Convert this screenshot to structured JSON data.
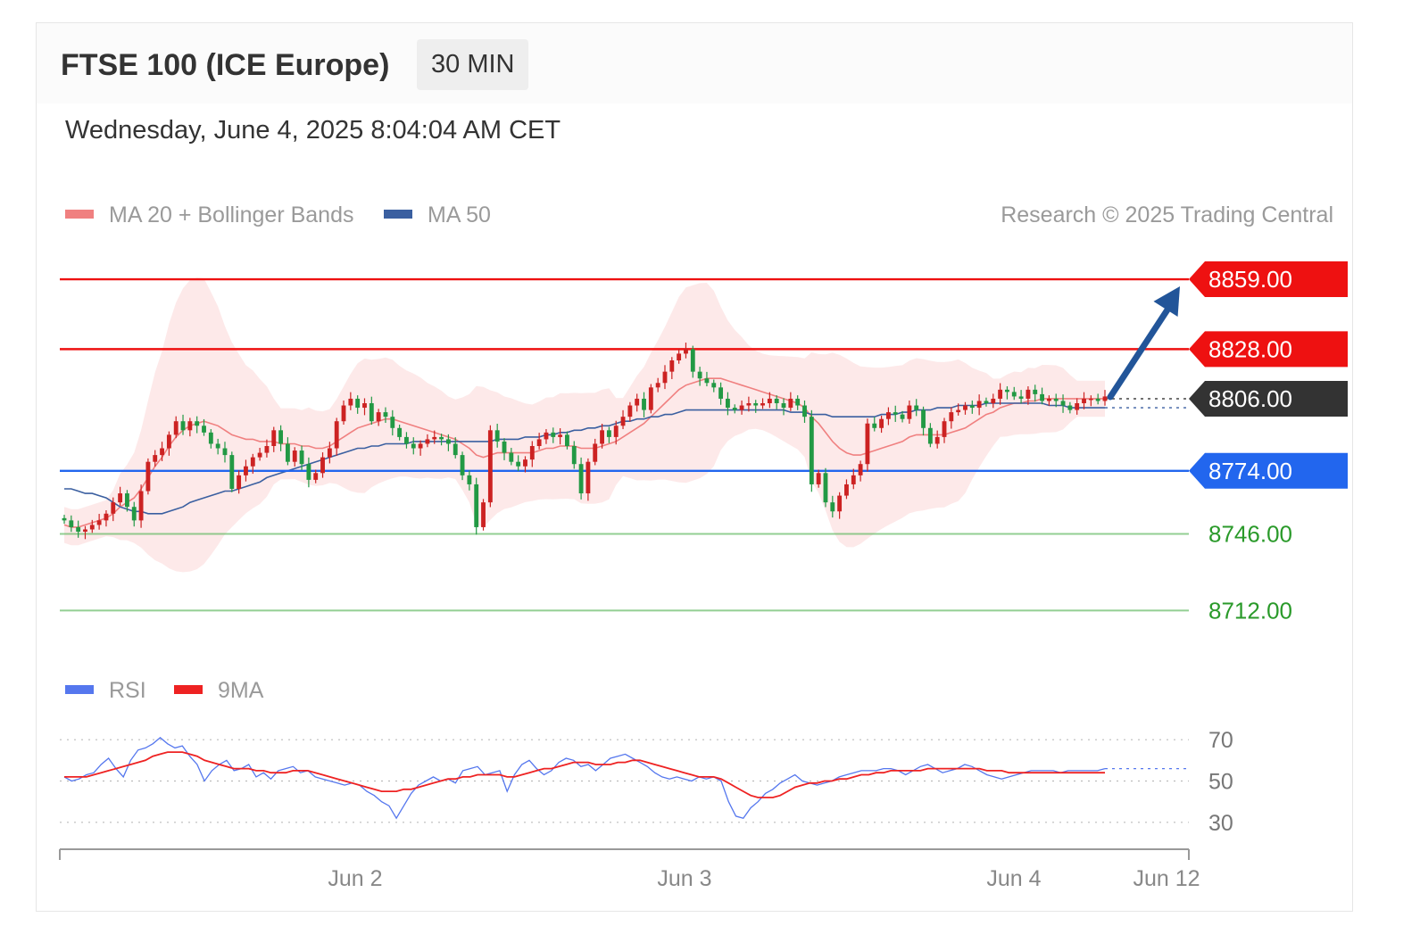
{
  "header": {
    "title": "FTSE 100 (ICE Europe)",
    "interval": "30 MIN",
    "datetime": "Wednesday, June 4, 2025 8:04:04 AM CET"
  },
  "legend": {
    "ma20": "MA 20 + Bollinger Bands",
    "ma50": "MA 50",
    "credit": "Research © 2025 Trading Central",
    "rsi": "RSI",
    "rsi_ma": "9MA"
  },
  "colors": {
    "resistance": "#ee1111",
    "support": "#2266ee",
    "target": "#225599",
    "current": "#333333",
    "lower_support": "#66bb66",
    "bull": "#cc2222",
    "bear": "#229944",
    "ma20": "#f08080",
    "ma50": "#3a5fa0",
    "bollinger": "#fde5e5",
    "rsi": "#5577ee",
    "rsi_ma": "#ee2222"
  },
  "chart_data": [
    {
      "type": "candlestick",
      "ylim": [
        8690,
        8880
      ],
      "x_ticks": [
        "Jun 2",
        "Jun 3",
        "Jun 4",
        "Jun 12"
      ],
      "levels": [
        {
          "label": "8859.00",
          "value": 8859,
          "kind": "resistance"
        },
        {
          "label": "8828.00",
          "value": 8828,
          "kind": "resistance"
        },
        {
          "label": "8806.00",
          "value": 8806,
          "kind": "current"
        },
        {
          "label": "8774.00",
          "value": 8774,
          "kind": "support"
        },
        {
          "label": "8746.00",
          "value": 8746,
          "kind": "lower_support"
        },
        {
          "label": "8712.00",
          "value": 8712,
          "kind": "lower_support"
        }
      ],
      "target_arrow": {
        "from": 8806,
        "to": 8859
      },
      "close": [
        8752,
        8749,
        8747,
        8748,
        8750,
        8752,
        8755,
        8760,
        8764,
        8758,
        8752,
        8765,
        8778,
        8781,
        8784,
        8790,
        8796,
        8792,
        8796,
        8794,
        8791,
        8786,
        8784,
        8781,
        8766,
        8772,
        8776,
        8780,
        8782,
        8785,
        8792,
        8786,
        8778,
        8783,
        8777,
        8770,
        8773,
        8780,
        8784,
        8796,
        8803,
        8806,
        8802,
        8804,
        8796,
        8800,
        8798,
        8793,
        8789,
        8786,
        8784,
        8786,
        8788,
        8789,
        8788,
        8786,
        8781,
        8772,
        8768,
        8749,
        8760,
        8792,
        8787,
        8782,
        8778,
        8776,
        8779,
        8785,
        8788,
        8791,
        8789,
        8790,
        8785,
        8777,
        8764,
        8778,
        8786,
        8792,
        8789,
        8794,
        8798,
        8803,
        8806,
        8801,
        8811,
        8813,
        8818,
        8823,
        8826,
        8828,
        8818,
        8815,
        8813,
        8811,
        8806,
        8802,
        8801,
        8803,
        8804,
        8803,
        8804,
        8806,
        8804,
        8802,
        8806,
        8803,
        8798,
        8768,
        8773,
        8760,
        8756,
        8763,
        8768,
        8772,
        8777,
        8795,
        8793,
        8797,
        8800,
        8799,
        8797,
        8803,
        8801,
        8793,
        8786,
        8789,
        8796,
        8800,
        8801,
        8803,
        8802,
        8805,
        8804,
        8806,
        8810,
        8809,
        8807,
        8806,
        8810,
        8808,
        8805,
        8806,
        8805,
        8803,
        8801,
        8804,
        8806,
        8806,
        8805,
        8807
      ],
      "ma20": [
        8750,
        8749,
        8749,
        8750,
        8751,
        8752,
        8753,
        8755,
        8758,
        8760,
        8762,
        8766,
        8771,
        8776,
        8780,
        8785,
        8789,
        8792,
        8794,
        8795,
        8796,
        8795,
        8794,
        8792,
        8790,
        8789,
        8788,
        8788,
        8787,
        8787,
        8787,
        8786,
        8786,
        8786,
        8785,
        8785,
        8784,
        8784,
        8785,
        8787,
        8789,
        8791,
        8793,
        8794,
        8795,
        8796,
        8797,
        8797,
        8796,
        8795,
        8794,
        8793,
        8792,
        8791,
        8790,
        8789,
        8788,
        8786,
        8784,
        8781,
        8780,
        8781,
        8782,
        8782,
        8782,
        8782,
        8782,
        8782,
        8783,
        8784,
        8784,
        8785,
        8785,
        8785,
        8784,
        8784,
        8784,
        8785,
        8786,
        8787,
        8789,
        8791,
        8793,
        8795,
        8798,
        8801,
        8804,
        8807,
        8810,
        8812,
        8813,
        8814,
        8815,
        8815,
        8815,
        8814,
        8813,
        8812,
        8811,
        8810,
        8809,
        8808,
        8807,
        8806,
        8805,
        8804,
        8802,
        8798,
        8795,
        8791,
        8787,
        8784,
        8782,
        8781,
        8781,
        8782,
        8783,
        8784,
        8785,
        8786,
        8787,
        8789,
        8790,
        8790,
        8790,
        8790,
        8790,
        8791,
        8792,
        8793,
        8795,
        8797,
        8799,
        8800,
        8802,
        8803,
        8804,
        8804,
        8805,
        8805,
        8806,
        8806,
        8806,
        8806,
        8806,
        8806,
        8806,
        8806,
        8806,
        8806
      ],
      "ma50": [
        8766,
        8766,
        8765,
        8764,
        8764,
        8763,
        8762,
        8760,
        8758,
        8757,
        8756,
        8756,
        8755,
        8755,
        8755,
        8756,
        8757,
        8758,
        8760,
        8761,
        8762,
        8763,
        8764,
        8765,
        8765,
        8766,
        8767,
        8768,
        8769,
        8771,
        8772,
        8773,
        8774,
        8775,
        8776,
        8777,
        8778,
        8779,
        8780,
        8781,
        8782,
        8783,
        8784,
        8784,
        8785,
        8785,
        8786,
        8786,
        8786,
        8786,
        8787,
        8787,
        8787,
        8787,
        8787,
        8787,
        8787,
        8787,
        8787,
        8787,
        8787,
        8787,
        8788,
        8788,
        8788,
        8788,
        8789,
        8789,
        8789,
        8790,
        8790,
        8791,
        8791,
        8792,
        8792,
        8793,
        8793,
        8794,
        8794,
        8795,
        8796,
        8796,
        8797,
        8797,
        8798,
        8798,
        8799,
        8799,
        8800,
        8801,
        8801,
        8801,
        8801,
        8801,
        8801,
        8801,
        8801,
        8801,
        8801,
        8801,
        8801,
        8801,
        8801,
        8801,
        8800,
        8800,
        8800,
        8799,
        8799,
        8799,
        8798,
        8798,
        8798,
        8798,
        8798,
        8798,
        8798,
        8799,
        8799,
        8799,
        8800,
        8800,
        8801,
        8801,
        8801,
        8802,
        8802,
        8802,
        8803,
        8803,
        8803,
        8803,
        8804,
        8804,
        8804,
        8804,
        8804,
        8804,
        8804,
        8804,
        8804,
        8803,
        8803,
        8803,
        8802,
        8802,
        8802,
        8802,
        8802,
        8802
      ]
    },
    {
      "type": "line",
      "ylim": [
        20,
        80
      ],
      "y_ticks": [
        "70",
        "50",
        "30"
      ],
      "series": [
        {
          "name": "RSI",
          "values": [
            52,
            50,
            51,
            53,
            54,
            58,
            61,
            56,
            52,
            60,
            65,
            66,
            68,
            71,
            68,
            66,
            67,
            62,
            58,
            50,
            55,
            58,
            60,
            55,
            56,
            58,
            52,
            54,
            51,
            55,
            56,
            57,
            54,
            55,
            52,
            51,
            50,
            49,
            48,
            49,
            48,
            45,
            43,
            40,
            38,
            32,
            38,
            44,
            48,
            50,
            52,
            50,
            51,
            49,
            55,
            56,
            57,
            53,
            54,
            55,
            45,
            53,
            58,
            60,
            56,
            53,
            55,
            59,
            61,
            60,
            57,
            58,
            55,
            58,
            61,
            62,
            63,
            61,
            59,
            57,
            54,
            52,
            51,
            52,
            51,
            50,
            52,
            51,
            52,
            50,
            40,
            33,
            32,
            37,
            40,
            44,
            46,
            49,
            51,
            53,
            50,
            49,
            48,
            49,
            50,
            52,
            53,
            54,
            55,
            55,
            55,
            56,
            56,
            55,
            53,
            55,
            57,
            58,
            56,
            54,
            55,
            56,
            58,
            57,
            55,
            53,
            52,
            51,
            52,
            53,
            54,
            55,
            55,
            55,
            55,
            54,
            55,
            55,
            55,
            55,
            55,
            56
          ]
        },
        {
          "name": "9MA",
          "values": [
            52,
            52,
            52,
            52,
            53,
            54,
            55,
            56,
            57,
            58,
            59,
            60,
            62,
            63,
            64,
            64,
            64,
            63,
            62,
            60,
            59,
            58,
            57,
            56,
            56,
            56,
            55,
            55,
            54,
            54,
            54,
            55,
            55,
            55,
            54,
            53,
            52,
            51,
            50,
            49,
            48,
            47,
            46,
            45,
            45,
            45,
            46,
            46,
            47,
            48,
            49,
            50,
            51,
            51,
            52,
            52,
            53,
            53,
            53,
            53,
            52,
            52,
            53,
            54,
            55,
            56,
            56,
            57,
            58,
            59,
            59,
            59,
            58,
            58,
            58,
            59,
            59,
            60,
            60,
            59,
            58,
            57,
            56,
            55,
            54,
            53,
            52,
            52,
            52,
            51,
            49,
            47,
            45,
            43,
            42,
            42,
            42,
            43,
            45,
            47,
            48,
            49,
            49,
            50,
            50,
            51,
            51,
            52,
            53,
            53,
            54,
            54,
            55,
            55,
            55,
            55,
            55,
            56,
            56,
            56,
            56,
            56,
            56,
            56,
            56,
            55,
            55,
            55,
            54,
            54,
            54,
            54,
            54,
            54,
            54,
            54,
            54,
            54,
            54,
            54,
            54,
            54
          ]
        }
      ]
    }
  ]
}
